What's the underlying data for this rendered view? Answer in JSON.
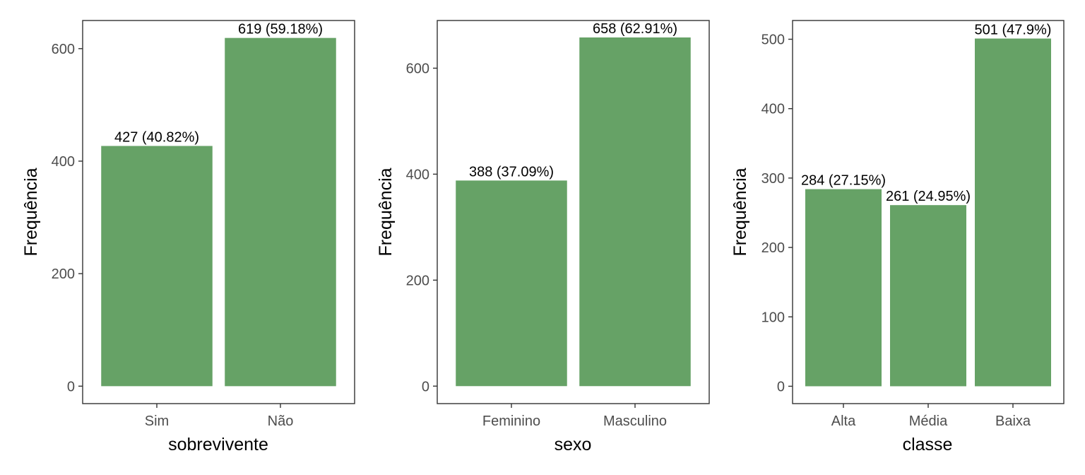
{
  "colors": {
    "bar": "#66a266",
    "axis": "#333333",
    "tick_text": "#4d4d4d"
  },
  "chart_data": [
    {
      "type": "bar",
      "title": "",
      "xlabel": "sobrevivente",
      "ylabel": "Frequência",
      "categories": [
        "Sim",
        "Não"
      ],
      "values": [
        427,
        619
      ],
      "data_labels": [
        "427 (40.82%)",
        "619 (59.18%)"
      ],
      "ylim": [
        -31,
        650
      ],
      "yticks": [
        0,
        200,
        400,
        600
      ],
      "ytick_labels": [
        "0",
        "200",
        "400",
        "600"
      ],
      "grid": false,
      "legend": "none"
    },
    {
      "type": "bar",
      "title": "",
      "xlabel": "sexo",
      "ylabel": "Frequência",
      "categories": [
        "Feminino",
        "Masculino"
      ],
      "values": [
        388,
        658
      ],
      "data_labels": [
        "388 (37.09%)",
        "658 (62.91%)"
      ],
      "ylim": [
        -33,
        690
      ],
      "yticks": [
        0,
        200,
        400,
        600
      ],
      "ytick_labels": [
        "0",
        "200",
        "400",
        "600"
      ],
      "grid": false,
      "legend": "none"
    },
    {
      "type": "bar",
      "title": "",
      "xlabel": "classe",
      "ylabel": "Frequência",
      "categories": [
        "Alta",
        "Média",
        "Baixa"
      ],
      "values": [
        284,
        261,
        501
      ],
      "data_labels": [
        "284 (27.15%)",
        "261 (24.95%)",
        "501 (47.9%)"
      ],
      "ylim": [
        -25,
        527
      ],
      "yticks": [
        0,
        100,
        200,
        300,
        400,
        500
      ],
      "ytick_labels": [
        "0",
        "100",
        "200",
        "300",
        "400",
        "500"
      ],
      "grid": false,
      "legend": "none"
    }
  ]
}
